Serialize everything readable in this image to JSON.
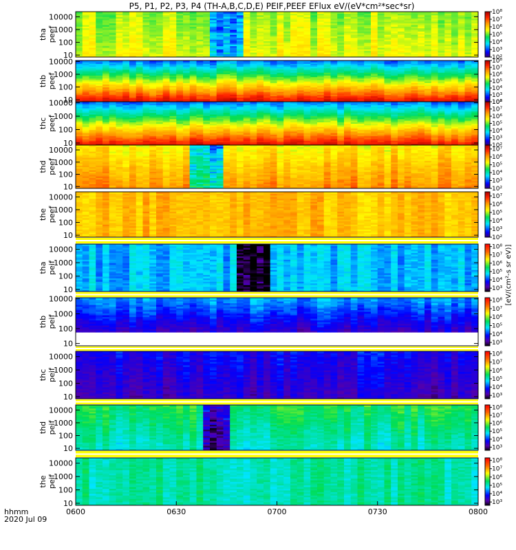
{
  "title": "P5, P1, P2, P3, P4 (TH-A,B,C,D,E) PEIF,PEEF EFlux eV/(eV*cm²*sec*sr)",
  "x_axis": {
    "ticks": [
      "0600",
      "0630",
      "0700",
      "0730",
      "0800"
    ],
    "label_line1": "hhmm",
    "label_line2": "2020 Jul 09"
  },
  "colorbar_label": "[eV/(cm²-s sr eV)]",
  "chart_data": {
    "type": "heatmap",
    "x_range_minutes": [
      0,
      120
    ],
    "x_time_labels": [
      "0600",
      "0630",
      "0700",
      "0730",
      "0800"
    ],
    "y_scale": "log",
    "panels": [
      {
        "id": "tha-peef",
        "label1": "tha",
        "label2": "peef",
        "y_ticks": [
          "10",
          "100",
          "1000",
          "10000"
        ],
        "y_range": [
          7,
          25000
        ],
        "cbar": "ee",
        "cbar_ticks": [
          "10²",
          "10³",
          "10⁴",
          "10⁵",
          "10⁶",
          "10⁷",
          "10⁸"
        ],
        "zrange": [
          2,
          8
        ],
        "level_low": 5.6,
        "level_high": 5.2,
        "burst_intervals": [
          [
            39.5,
            49.5
          ]
        ]
      },
      {
        "id": "thb-peef",
        "label1": "thb",
        "label2": "peef",
        "y_ticks": [
          "10",
          "100",
          "1000",
          "10000"
        ],
        "y_range": [
          7,
          12000
        ],
        "cbar": "ee",
        "cbar_ticks": [
          "10²",
          "10³",
          "10⁴",
          "10⁵",
          "10⁶",
          "10⁷",
          "10⁸"
        ],
        "zrange": [
          2,
          8
        ],
        "level_low": 7.7,
        "level_high": 3.2,
        "burst_intervals": []
      },
      {
        "id": "thc-peef",
        "label1": "thc",
        "label2": "peef",
        "y_ticks": [
          "10",
          "100",
          "1000",
          "10000"
        ],
        "y_range": [
          7,
          12000
        ],
        "cbar": "ee",
        "cbar_ticks": [
          "10²",
          "10³",
          "10⁴",
          "10⁵",
          "10⁶",
          "10⁷",
          "10⁸"
        ],
        "zrange": [
          2,
          8
        ],
        "level_low": 7.6,
        "level_high": 3.2,
        "burst_intervals": []
      },
      {
        "id": "thd-peef",
        "label1": "thd",
        "label2": "peef",
        "y_ticks": [
          "10",
          "100",
          "1000",
          "10000"
        ],
        "y_range": [
          7,
          25000
        ],
        "cbar": "ee",
        "cbar_ticks": [
          "10²",
          "10³",
          "10⁴",
          "10⁵",
          "10⁶",
          "10⁷"
        ],
        "zrange": [
          2,
          7.5
        ],
        "level_low": 6.2,
        "level_high": 5.4,
        "burst_intervals": [
          [
            33.5,
            44
          ]
        ]
      },
      {
        "id": "the-peef",
        "label1": "the",
        "label2": "peef",
        "y_ticks": [
          "10",
          "100",
          "1000",
          "10000"
        ],
        "y_range": [
          7,
          25000
        ],
        "cbar": "ee",
        "cbar_ticks": [
          "10²",
          "10³",
          "10⁴",
          "10⁵",
          "10⁶",
          "10⁷"
        ],
        "zrange": [
          2,
          7.5
        ],
        "level_low": 5.8,
        "level_high": 5.8,
        "burst_intervals": []
      },
      {
        "id": "tha-peif",
        "label1": "tha",
        "label2": "peif",
        "y_ticks": [
          "10",
          "100",
          "1000",
          "10000"
        ],
        "y_range": [
          7,
          25000
        ],
        "cbar": "ii",
        "cbar_ticks": [
          "10³",
          "10⁴",
          "10⁵",
          "10⁶",
          "10⁷",
          "10⁸"
        ],
        "zrange": [
          2.6,
          8.3
        ],
        "level_low": 4.6,
        "level_high": 4.6,
        "burst_intervals": [
          [
            49,
            57
          ]
        ]
      },
      {
        "id": "thb-peif",
        "label1": "thb",
        "label2": "peif",
        "y_ticks": [
          "10",
          "100",
          "1000",
          "10000"
        ],
        "y_range": [
          7,
          12000
        ],
        "cbar": "ii",
        "cbar_ticks": [
          "10³",
          "10⁴",
          "10⁵",
          "10⁶",
          "10⁷",
          "10⁸"
        ],
        "zrange": [
          2.6,
          8.3
        ],
        "level_low": 3,
        "level_high": 4.5,
        "burst_intervals": []
      },
      {
        "id": "thc-peif",
        "label1": "thc",
        "label2": "peif",
        "y_ticks": [
          "10",
          "100",
          "1000",
          "10000"
        ],
        "y_range": [
          7,
          25000
        ],
        "cbar": "ii",
        "cbar_ticks": [
          "10³",
          "10⁴",
          "10⁵",
          "10⁶",
          "10⁷",
          "10⁸"
        ],
        "zrange": [
          2.6,
          8.3
        ],
        "level_low": 3.4,
        "level_high": 3.8,
        "burst_intervals": []
      },
      {
        "id": "thd-peif",
        "label1": "thd",
        "label2": "peif",
        "y_ticks": [
          "10",
          "100",
          "1000",
          "10000"
        ],
        "y_range": [
          7,
          25000
        ],
        "cbar": "ii",
        "cbar_ticks": [
          "10³",
          "10⁴",
          "10⁵",
          "10⁶",
          "10⁷",
          "10⁸"
        ],
        "zrange": [
          2.6,
          8.3
        ],
        "level_low": 5,
        "level_high": 5.6,
        "burst_intervals": [
          [
            39,
            45
          ]
        ]
      },
      {
        "id": "the-peif",
        "label1": "the",
        "label2": "peif",
        "y_ticks": [
          "10",
          "100",
          "1000",
          "10000"
        ],
        "y_range": [
          7,
          25000
        ],
        "cbar": "ii",
        "cbar_ticks": [
          "10³",
          "10⁴",
          "10⁵",
          "10⁶",
          "10⁷",
          "10⁸"
        ],
        "zrange": [
          2.6,
          8.3
        ],
        "level_low": 5.2,
        "level_high": 5.2,
        "burst_intervals": []
      }
    ]
  },
  "colors": {
    "background": "#ffffff",
    "axis": "#000000",
    "gap_fill": "#ffff00"
  }
}
